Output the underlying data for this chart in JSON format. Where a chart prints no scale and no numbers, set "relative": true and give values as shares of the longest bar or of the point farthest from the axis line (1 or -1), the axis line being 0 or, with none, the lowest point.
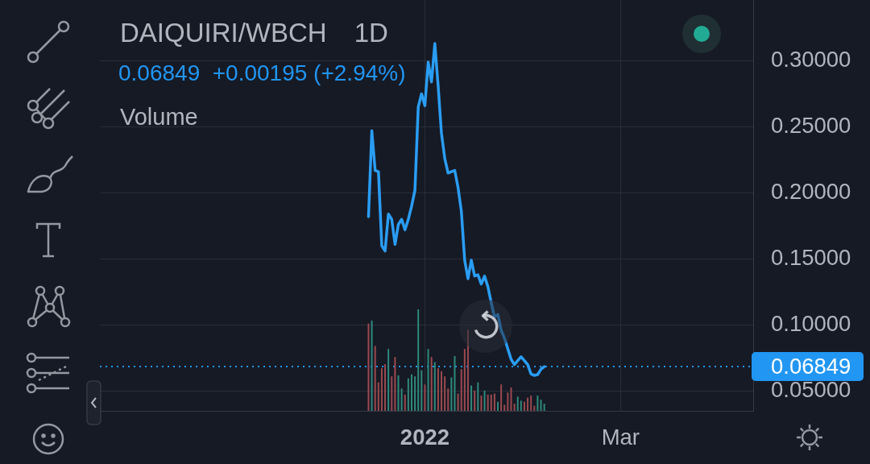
{
  "chart_data": [
    {
      "type": "line",
      "title": "DAIQUIRI/WBCH",
      "subtitle": "0.06849  +0.00195 (+2.94%)",
      "annotations": [
        "1D"
      ],
      "x": [
        "2021-12-15",
        "2021-12-16",
        "2021-12-17",
        "2021-12-18",
        "2021-12-19",
        "2021-12-20",
        "2021-12-21",
        "2021-12-22",
        "2021-12-23",
        "2021-12-24",
        "2021-12-25",
        "2021-12-26",
        "2021-12-27",
        "2021-12-28",
        "2021-12-29",
        "2021-12-30",
        "2021-12-31",
        "2022-01-01",
        "2022-01-02",
        "2022-01-03",
        "2022-01-04",
        "2022-01-05",
        "2022-01-06",
        "2022-01-07",
        "2022-01-08",
        "2022-01-09",
        "2022-01-10",
        "2022-01-11",
        "2022-01-12",
        "2022-01-13",
        "2022-01-14",
        "2022-01-15",
        "2022-01-16",
        "2022-01-17",
        "2022-01-18",
        "2022-01-19",
        "2022-01-20",
        "2022-01-21",
        "2022-01-22",
        "2022-01-23",
        "2022-01-24",
        "2022-01-25",
        "2022-01-26",
        "2022-01-27",
        "2022-01-28",
        "2022-01-29",
        "2022-01-30",
        "2022-01-31",
        "2022-02-01",
        "2022-02-02",
        "2022-02-03",
        "2022-02-04",
        "2022-02-05",
        "2022-02-06"
      ],
      "values": [
        0.182,
        0.247,
        0.217,
        0.216,
        0.16,
        0.156,
        0.184,
        0.18,
        0.161,
        0.176,
        0.18,
        0.172,
        0.18,
        0.19,
        0.202,
        0.265,
        0.275,
        0.266,
        0.299,
        0.284,
        0.313,
        0.281,
        0.245,
        0.226,
        0.215,
        0.216,
        0.217,
        0.204,
        0.186,
        0.149,
        0.135,
        0.149,
        0.137,
        0.138,
        0.131,
        0.137,
        0.129,
        0.117,
        0.106,
        0.108,
        0.096,
        0.09,
        0.082,
        0.074,
        0.07,
        0.073,
        0.076,
        0.073,
        0.07,
        0.063,
        0.0618,
        0.0624,
        0.0665,
        0.0685
      ],
      "color": "#2a9df4",
      "xlim": [
        "2021-09-25",
        "2022-04-10"
      ],
      "xticks": [
        {
          "value": "2022-01-01",
          "label": "2022"
        },
        {
          "value": "2022-03-01",
          "label": "Mar"
        }
      ],
      "ylim": [
        0.035,
        0.346
      ],
      "yticks": [
        {
          "value": 0.05,
          "label": "0.05000"
        },
        {
          "value": 0.1,
          "label": "0.10000"
        },
        {
          "value": 0.15,
          "label": "0.15000"
        },
        {
          "value": 0.2,
          "label": "0.20000"
        },
        {
          "value": 0.25,
          "label": "0.25000"
        },
        {
          "value": 0.3,
          "label": "0.30000"
        }
      ],
      "grid": true,
      "ref_lines": [
        {
          "axis": "y",
          "value": 0.06849,
          "label": "0.06849",
          "color": "#2196f3",
          "line_style": "dotted"
        }
      ]
    },
    {
      "type": "bar",
      "title": "Volume",
      "x": [
        "2021-12-15",
        "2021-12-16",
        "2021-12-17",
        "2021-12-18",
        "2021-12-19",
        "2021-12-20",
        "2021-12-21",
        "2021-12-22",
        "2021-12-23",
        "2021-12-24",
        "2021-12-25",
        "2021-12-26",
        "2021-12-27",
        "2021-12-28",
        "2021-12-29",
        "2021-12-30",
        "2021-12-31",
        "2022-01-01",
        "2022-01-02",
        "2022-01-03",
        "2022-01-04",
        "2022-01-05",
        "2022-01-06",
        "2022-01-07",
        "2022-01-08",
        "2022-01-09",
        "2022-01-10",
        "2022-01-11",
        "2022-01-12",
        "2022-01-13",
        "2022-01-14",
        "2022-01-15",
        "2022-01-16",
        "2022-01-17",
        "2022-01-18",
        "2022-01-19",
        "2022-01-20",
        "2022-01-21",
        "2022-01-22",
        "2022-01-23",
        "2022-01-24",
        "2022-01-25",
        "2022-01-26",
        "2022-01-27",
        "2022-01-28",
        "2022-01-29",
        "2022-01-30",
        "2022-01-31",
        "2022-02-01",
        "2022-02-02",
        "2022-02-03",
        "2022-02-04",
        "2022-02-05",
        "2022-02-06"
      ],
      "values": [
        0.86,
        0.89,
        0.64,
        0.28,
        0.42,
        0.46,
        0.61,
        0.34,
        0.53,
        0.35,
        0.22,
        0.16,
        0.32,
        0.36,
        0.34,
        1,
        0.4,
        0.26,
        0.61,
        0.53,
        0.48,
        0.42,
        0.39,
        0.34,
        0.22,
        0.33,
        0.54,
        0.17,
        0.41,
        0.61,
        0.8,
        0.25,
        0.2,
        0.28,
        0.15,
        0.2,
        0.16,
        0.16,
        0.17,
        0.09,
        0.26,
        0.06,
        0.18,
        0.23,
        0.07,
        0.14,
        0.1,
        0.09,
        0.13,
        0.15,
        0.05,
        0.15,
        0.11,
        0.07
      ],
      "colors": [
        "#9c4a4f",
        "#2f8a7c",
        "#9c4a4f",
        "#9c4a4f",
        "#9c4a4f",
        "#9c4a4f",
        "#2f8a7c",
        "#9c4a4f",
        "#9c4a4f",
        "#2f8a7c",
        "#2f8a7c",
        "#9c4a4f",
        "#2f8a7c",
        "#2f8a7c",
        "#2f8a7c",
        "#2f8a7c",
        "#2f8a7c",
        "#9c4a4f",
        "#2f8a7c",
        "#9c4a4f",
        "#2f8a7c",
        "#9c4a4f",
        "#9c4a4f",
        "#9c4a4f",
        "#9c4a4f",
        "#2f8a7c",
        "#2f8a7c",
        "#9c4a4f",
        "#9c4a4f",
        "#9c4a4f",
        "#9c4a4f",
        "#2f8a7c",
        "#9c4a4f",
        "#2f8a7c",
        "#9c4a4f",
        "#2f8a7c",
        "#9c4a4f",
        "#9c4a4f",
        "#9c4a4f",
        "#2f8a7c",
        "#9c4a4f",
        "#9c4a4f",
        "#9c4a4f",
        "#9c4a4f",
        "#9c4a4f",
        "#2f8a7c",
        "#2f8a7c",
        "#9c4a4f",
        "#9c4a4f",
        "#9c4a4f",
        "#9c4a4f",
        "#2f8a7c",
        "#2f8a7c",
        "#2f8a7c"
      ],
      "relative": true,
      "xlim": [
        "2021-09-25",
        "2022-04-10"
      ],
      "tick_labels": false
    }
  ]
}
